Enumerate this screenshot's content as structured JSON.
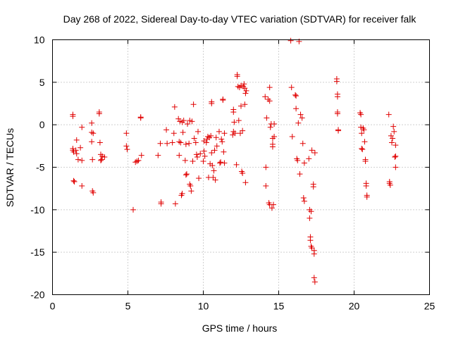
{
  "chart_data": {
    "type": "scatter",
    "title": "Day 268 of 2022, Sidereal Day-to-day VTEC variation (SDTVAR) for receiver falk",
    "xlabel": "GPS time / hours",
    "ylabel": "SDTVAR / TECUs",
    "xlim": [
      0,
      25
    ],
    "ylim": [
      -20,
      10
    ],
    "xticks": [
      0,
      5,
      10,
      15,
      20,
      25
    ],
    "yticks": [
      -20,
      -15,
      -10,
      -5,
      0,
      5,
      10
    ],
    "grid": true,
    "marker": "plus",
    "color": "#e00000",
    "series": [
      {
        "name": "SDTVAR",
        "points": [
          [
            1.35,
            1.2
          ],
          [
            1.35,
            1.0
          ],
          [
            1.35,
            -2.8
          ],
          [
            1.35,
            -3.0
          ],
          [
            1.4,
            -3.2
          ],
          [
            1.4,
            -6.6
          ],
          [
            1.45,
            -6.7
          ],
          [
            1.55,
            -3.0
          ],
          [
            1.6,
            -3.4
          ],
          [
            1.6,
            -1.8
          ],
          [
            1.7,
            -4.1
          ],
          [
            1.85,
            -2.7
          ],
          [
            1.95,
            -4.2
          ],
          [
            1.95,
            -7.2
          ],
          [
            1.95,
            -0.3
          ],
          [
            2.6,
            0.2
          ],
          [
            2.6,
            -0.9
          ],
          [
            2.6,
            -2.0
          ],
          [
            2.65,
            -4.1
          ],
          [
            2.65,
            -7.8
          ],
          [
            2.7,
            -8.0
          ],
          [
            2.7,
            -1.0
          ],
          [
            3.1,
            1.5
          ],
          [
            3.1,
            1.3
          ],
          [
            3.15,
            -2.1
          ],
          [
            3.2,
            -3.5
          ],
          [
            3.2,
            -4.2
          ],
          [
            3.25,
            -4.1
          ],
          [
            3.3,
            -3.7
          ],
          [
            3.45,
            -3.8
          ],
          [
            4.9,
            -1.0
          ],
          [
            4.9,
            -2.5
          ],
          [
            4.95,
            -2.9
          ],
          [
            5.35,
            -10.0
          ],
          [
            5.5,
            -4.4
          ],
          [
            5.6,
            -4.3
          ],
          [
            5.7,
            -4.2
          ],
          [
            5.85,
            0.9
          ],
          [
            5.85,
            0.8
          ],
          [
            5.9,
            -3.6
          ],
          [
            7.0,
            -3.6
          ],
          [
            7.15,
            -2.2
          ],
          [
            7.2,
            -9.1
          ],
          [
            7.2,
            -9.3
          ],
          [
            7.55,
            -0.6
          ],
          [
            7.6,
            -2.2
          ],
          [
            7.95,
            -2.1
          ],
          [
            8.05,
            -1.0
          ],
          [
            8.1,
            2.1
          ],
          [
            8.15,
            -9.3
          ],
          [
            8.35,
            0.7
          ],
          [
            8.4,
            -3.6
          ],
          [
            8.4,
            -2.0
          ],
          [
            8.45,
            0.4
          ],
          [
            8.5,
            -2.1
          ],
          [
            8.55,
            -8.3
          ],
          [
            8.6,
            -8.1
          ],
          [
            8.6,
            0.3
          ],
          [
            8.65,
            -0.9
          ],
          [
            8.7,
            0.5
          ],
          [
            8.8,
            -4.2
          ],
          [
            8.85,
            -2.3
          ],
          [
            8.85,
            -5.9
          ],
          [
            8.9,
            -5.8
          ],
          [
            8.95,
            0.1
          ],
          [
            9.05,
            -2.2
          ],
          [
            9.1,
            0.5
          ],
          [
            9.1,
            -7.0
          ],
          [
            9.15,
            -7.2
          ],
          [
            9.2,
            -7.8
          ],
          [
            9.25,
            0.4
          ],
          [
            9.3,
            -4.3
          ],
          [
            9.35,
            2.4
          ],
          [
            9.4,
            -1.6
          ],
          [
            9.5,
            -2.1
          ],
          [
            9.55,
            -3.5
          ],
          [
            9.6,
            -3.8
          ],
          [
            9.65,
            -0.8
          ],
          [
            9.7,
            -6.3
          ],
          [
            9.8,
            -3.4
          ],
          [
            10.0,
            -4.3
          ],
          [
            10.05,
            -1.9
          ],
          [
            10.05,
            -3.1
          ],
          [
            10.1,
            -3.7
          ],
          [
            10.2,
            -2.1
          ],
          [
            10.25,
            -1.7
          ],
          [
            10.3,
            -1.4
          ],
          [
            10.35,
            -6.2
          ],
          [
            10.4,
            -1.5
          ],
          [
            10.45,
            -4.6
          ],
          [
            10.5,
            -1.3
          ],
          [
            10.55,
            2.7
          ],
          [
            10.55,
            2.5
          ],
          [
            10.55,
            -3.3
          ],
          [
            10.6,
            -4.8
          ],
          [
            10.65,
            -6.2
          ],
          [
            10.7,
            -5.4
          ],
          [
            10.75,
            -3.0
          ],
          [
            10.8,
            -6.5
          ],
          [
            10.85,
            -1.5
          ],
          [
            10.9,
            -2.5
          ],
          [
            11.05,
            -0.8
          ],
          [
            11.1,
            -4.5
          ],
          [
            11.15,
            -4.4
          ],
          [
            11.2,
            -1.7
          ],
          [
            11.25,
            -2.0
          ],
          [
            11.3,
            3.0
          ],
          [
            11.3,
            2.9
          ],
          [
            11.35,
            -3.2
          ],
          [
            11.4,
            -4.5
          ],
          [
            11.4,
            -1.0
          ],
          [
            11.95,
            -1.2
          ],
          [
            12.0,
            -0.8
          ],
          [
            12.0,
            1.8
          ],
          [
            12.0,
            1.5
          ],
          [
            12.05,
            0.3
          ],
          [
            12.1,
            -1.0
          ],
          [
            12.2,
            -4.7
          ],
          [
            12.25,
            5.9
          ],
          [
            12.25,
            5.7
          ],
          [
            12.3,
            4.5
          ],
          [
            12.35,
            0.5
          ],
          [
            12.4,
            4.4
          ],
          [
            12.45,
            -1.0
          ],
          [
            12.5,
            4.6
          ],
          [
            12.5,
            2.2
          ],
          [
            12.55,
            -5.5
          ],
          [
            12.6,
            -0.7
          ],
          [
            12.6,
            -5.7
          ],
          [
            12.65,
            4.5
          ],
          [
            12.7,
            4.8
          ],
          [
            12.75,
            4.3
          ],
          [
            12.75,
            2.4
          ],
          [
            12.8,
            3.7
          ],
          [
            12.8,
            -6.8
          ],
          [
            12.85,
            4.0
          ],
          [
            14.1,
            3.3
          ],
          [
            14.15,
            -5.0
          ],
          [
            14.15,
            -7.2
          ],
          [
            14.2,
            0.8
          ],
          [
            14.3,
            3.0
          ],
          [
            14.35,
            -9.2
          ],
          [
            14.4,
            4.4
          ],
          [
            14.4,
            2.8
          ],
          [
            14.4,
            -9.4
          ],
          [
            14.45,
            -0.3
          ],
          [
            14.5,
            0.1
          ],
          [
            14.55,
            -9.8
          ],
          [
            14.6,
            -1.6
          ],
          [
            14.6,
            -2.6
          ],
          [
            14.6,
            -2.3
          ],
          [
            14.65,
            -9.4
          ],
          [
            14.7,
            -1.4
          ],
          [
            14.7,
            0.1
          ],
          [
            15.8,
            9.9
          ],
          [
            15.85,
            4.4
          ],
          [
            15.9,
            -1.4
          ],
          [
            16.1,
            3.5
          ],
          [
            16.15,
            1.9
          ],
          [
            16.15,
            3.4
          ],
          [
            16.2,
            -4.0
          ],
          [
            16.25,
            -4.2
          ],
          [
            16.3,
            0.2
          ],
          [
            16.35,
            9.8
          ],
          [
            16.4,
            -5.8
          ],
          [
            16.45,
            1.2
          ],
          [
            16.55,
            0.8
          ],
          [
            16.6,
            -2.2
          ],
          [
            16.65,
            -8.6
          ],
          [
            16.7,
            -9.0
          ],
          [
            16.7,
            -4.5
          ],
          [
            17.0,
            -4.0
          ],
          [
            17.05,
            -11.0
          ],
          [
            17.05,
            -10.0
          ],
          [
            17.1,
            -13.2
          ],
          [
            17.1,
            -13.6
          ],
          [
            17.15,
            -10.2
          ],
          [
            17.15,
            -14.3
          ],
          [
            17.2,
            -14.5
          ],
          [
            17.2,
            -3.0
          ],
          [
            17.3,
            -7.0
          ],
          [
            17.3,
            -7.3
          ],
          [
            17.35,
            -14.8
          ],
          [
            17.35,
            -15.2
          ],
          [
            17.35,
            -18.0
          ],
          [
            17.4,
            -18.5
          ],
          [
            17.4,
            -3.3
          ],
          [
            18.85,
            5.4
          ],
          [
            18.85,
            5.1
          ],
          [
            18.9,
            3.6
          ],
          [
            18.9,
            3.3
          ],
          [
            18.9,
            1.5
          ],
          [
            18.9,
            1.3
          ],
          [
            18.95,
            -0.6
          ],
          [
            18.95,
            -0.7
          ],
          [
            20.4,
            1.4
          ],
          [
            20.45,
            1.2
          ],
          [
            20.45,
            -0.3
          ],
          [
            20.5,
            -1.0
          ],
          [
            20.5,
            -2.8
          ],
          [
            20.55,
            -2.9
          ],
          [
            20.6,
            -0.4
          ],
          [
            20.65,
            -0.6
          ],
          [
            20.7,
            -2.0
          ],
          [
            20.75,
            -4.1
          ],
          [
            20.75,
            -4.3
          ],
          [
            20.8,
            -6.9
          ],
          [
            20.8,
            -7.2
          ],
          [
            20.85,
            -8.3
          ],
          [
            20.85,
            -8.5
          ],
          [
            22.3,
            1.2
          ],
          [
            22.35,
            -6.7
          ],
          [
            22.35,
            -6.9
          ],
          [
            22.4,
            -7.1
          ],
          [
            22.45,
            -1.3
          ],
          [
            22.5,
            -2.1
          ],
          [
            22.55,
            -1.6
          ],
          [
            22.6,
            -0.2
          ],
          [
            22.65,
            -0.8
          ],
          [
            22.7,
            -3.8
          ],
          [
            22.75,
            -2.4
          ],
          [
            22.75,
            -5.0
          ],
          [
            22.75,
            -3.7
          ]
        ]
      }
    ]
  }
}
